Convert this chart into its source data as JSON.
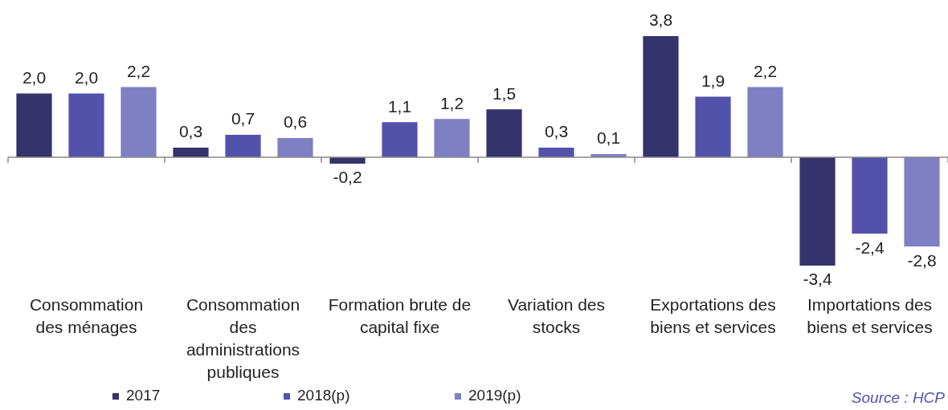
{
  "chart_data": {
    "type": "bar",
    "categories": [
      "Consommation des ménages",
      "Consommation des administrations publiques",
      "Formation brute de capital fixe",
      "Variation des stocks",
      "Exportations des biens et services",
      "Importations des biens et services"
    ],
    "series": [
      {
        "name": "2017",
        "color": "#35336b",
        "values": [
          2.0,
          0.3,
          -0.2,
          1.5,
          3.8,
          -3.4
        ],
        "value_labels": [
          "2,0",
          "0,3",
          "-0,2",
          "1,5",
          "3,8",
          "-3,4"
        ]
      },
      {
        "name": "2018(p)",
        "color": "#5352ab",
        "values": [
          2.0,
          0.7,
          1.1,
          0.3,
          1.9,
          -2.4
        ],
        "value_labels": [
          "2,0",
          "0,7",
          "1,1",
          "0,3",
          "1,9",
          "-2,4"
        ]
      },
      {
        "name": "2019(p)",
        "color": "#7f7fc4",
        "values": [
          2.2,
          0.6,
          1.2,
          0.1,
          2.2,
          -2.8
        ],
        "value_labels": [
          "2,2",
          "0,6",
          "1,2",
          "0,1",
          "2,2",
          "-2,8"
        ]
      }
    ],
    "legend": "bottom left",
    "annotations": [
      "Source : HCP"
    ]
  }
}
